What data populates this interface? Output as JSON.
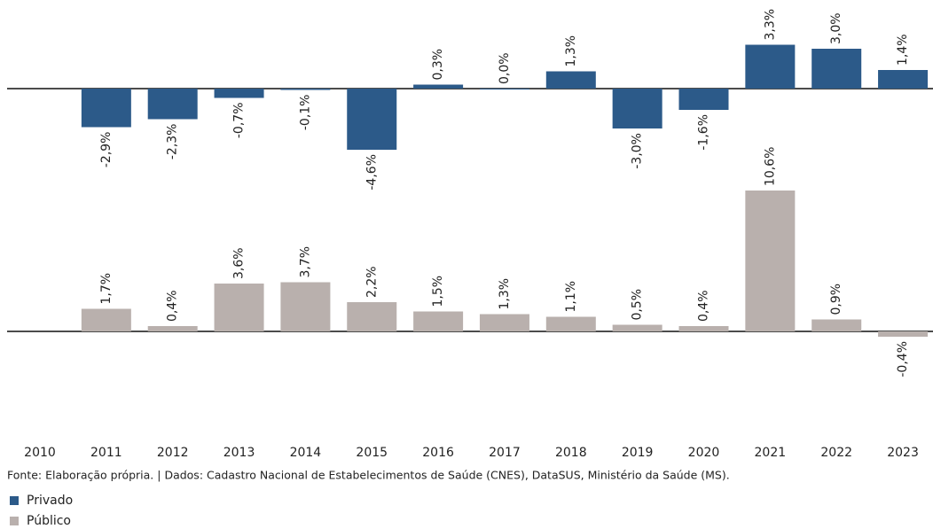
{
  "chart_data": {
    "type": "bar",
    "categories": [
      "2010",
      "2011",
      "2012",
      "2013",
      "2014",
      "2015",
      "2016",
      "2017",
      "2018",
      "2019",
      "2020",
      "2021",
      "2022",
      "2023"
    ],
    "series": [
      {
        "name": "Privado",
        "color": "#2c5a89",
        "values": [
          null,
          -2.9,
          -2.3,
          -0.7,
          -0.1,
          -4.6,
          0.3,
          0.0,
          1.3,
          -3.0,
          -1.6,
          3.3,
          3.0,
          1.4
        ],
        "value_labels": [
          null,
          "-2,9%",
          "-2,3%",
          "-0,7%",
          "-0,1%",
          "-4,6%",
          "0,3%",
          "0,0%",
          "1,3%",
          "-3,0%",
          "-1,6%",
          "3,3%",
          "3,0%",
          "1,4%"
        ]
      },
      {
        "name": "Público",
        "color": "#b9b0ad",
        "values": [
          null,
          1.7,
          0.4,
          3.6,
          3.7,
          2.2,
          1.5,
          1.3,
          1.1,
          0.5,
          0.4,
          10.6,
          0.9,
          -0.4
        ],
        "value_labels": [
          null,
          "1,7%",
          "0,4%",
          "3,6%",
          "3,7%",
          "2,2%",
          "1,5%",
          "1,3%",
          "1,1%",
          "0,5%",
          "0,4%",
          "10,6%",
          "0,9%",
          "-0,4%"
        ]
      }
    ],
    "source": "Fonte: Elaboração própria. | Dados: Cadastro Nacional de Estabelecimentos de Saúde (CNES), DataSUS, Ministério da Saúde (MS)."
  }
}
